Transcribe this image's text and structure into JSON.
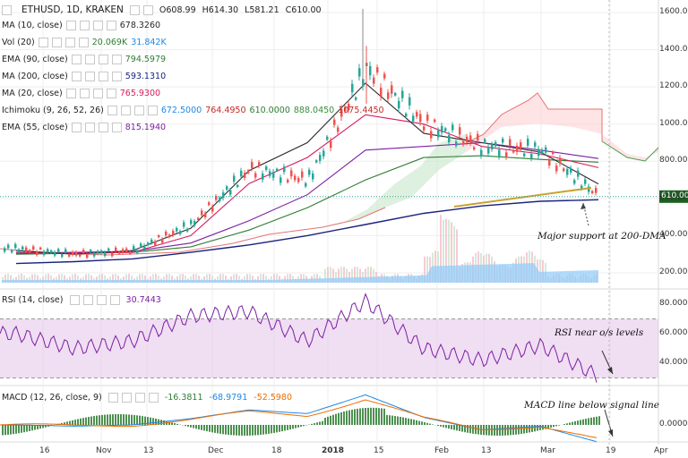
{
  "header": {
    "symbol": "ETHUSD, 1D, KRAKEN",
    "open": "O608.99",
    "high": "H614.30",
    "low": "L581.21",
    "close": "C610.00"
  },
  "legend": [
    {
      "label": "MA (10, close)",
      "values": [
        "678.3260"
      ],
      "color": "#2a2a2a"
    },
    {
      "label": "Vol (20)",
      "values": [
        "20.069K",
        "31.842K"
      ],
      "color": "#2e7d32",
      "color2": "#1e88e5"
    },
    {
      "label": "EMA (90, close)",
      "values": [
        "794.5979"
      ],
      "color": "#2e7d32"
    },
    {
      "label": "MA (200, close)",
      "values": [
        "593.1310"
      ],
      "color": "#1a237e"
    },
    {
      "label": "MA (20, close)",
      "values": [
        "765.9300"
      ],
      "color": "#d81b60"
    },
    {
      "label": "Ichimoku (9, 26, 52, 26)",
      "values": [
        "672.5000",
        "764.4950",
        "610.0000",
        "888.0450",
        "1075.4450"
      ],
      "color": "#1e88e5",
      "colors": [
        "#1e88e5",
        "#c62828",
        "#2e7d32",
        "#388e3c",
        "#c62828"
      ]
    },
    {
      "label": "EMA (55, close)",
      "values": [
        "815.1940"
      ],
      "color": "#7b1fa2"
    }
  ],
  "rsi_legend": {
    "label": "RSI (14, close)",
    "value": "30.7443",
    "color": "#7b1fa2"
  },
  "macd_legend": {
    "label": "MACD (12, 26, close, 9)",
    "values": [
      "-16.3811",
      "-68.9791",
      "-52.5980"
    ],
    "colors": [
      "#2e7d32",
      "#1e88e5",
      "#ef6c00"
    ]
  },
  "annotations": {
    "support": "Major support at 200-DMA",
    "rsi": "RSI near o/s levels",
    "macd": "MACD line below signal line"
  },
  "price_axis": {
    "ticks": [
      "1600.00",
      "1400.00",
      "1200.00",
      "1000.00",
      "800.00",
      "600.00",
      "400.00",
      "200.00"
    ],
    "last_price": "610.00"
  },
  "rsi_axis": {
    "ticks": [
      "80.0000",
      "60.0000",
      "40.0000"
    ]
  },
  "macd_axis": {
    "ticks": [
      "0.0000"
    ]
  },
  "time_axis": {
    "ticks": [
      "16",
      "Nov",
      "13",
      "Dec",
      "18",
      "2018",
      "15",
      "Feb",
      "13",
      "Mar",
      "19",
      "Apr"
    ]
  },
  "colors": {
    "up": "#26a69a",
    "down": "#ef5350",
    "volume": "#90caf9",
    "rsi_band": "#e1bee7",
    "cloud_green": "#c8e6c9",
    "cloud_red": "#ffcdd2",
    "trendline": "#c8a232"
  },
  "chart_data": {
    "type": "line",
    "title": "ETHUSD, 1D, KRAKEN",
    "x": [
      "Oct 16",
      "Nov 1",
      "Nov 13",
      "Dec 1",
      "Dec 18",
      "Jan 1 2018",
      "Jan 15",
      "Feb 1",
      "Feb 13",
      "Mar 1",
      "Mar 19"
    ],
    "series": [
      {
        "name": "Price (close)",
        "values": [
          330,
          300,
          320,
          460,
          760,
          700,
          1300,
          1000,
          880,
          860,
          610
        ]
      },
      {
        "name": "MA (200, close)",
        "values": [
          250,
          260,
          275,
          310,
          350,
          400,
          460,
          520,
          560,
          585,
          593
        ]
      },
      {
        "name": "EMA (90, close)",
        "values": [
          300,
          305,
          310,
          340,
          430,
          550,
          700,
          820,
          830,
          810,
          795
        ]
      },
      {
        "name": "EMA (55, close)",
        "values": [
          305,
          310,
          315,
          360,
          480,
          620,
          860,
          880,
          900,
          860,
          815
        ]
      },
      {
        "name": "MA (20, close)",
        "values": [
          310,
          305,
          310,
          400,
          680,
          820,
          1050,
          1000,
          880,
          840,
          766
        ]
      },
      {
        "name": "MA (10, close)",
        "values": [
          320,
          300,
          320,
          440,
          750,
          900,
          1220,
          950,
          900,
          850,
          678
        ]
      },
      {
        "name": "RSI (14, close)",
        "values": [
          60,
          50,
          55,
          72,
          75,
          55,
          82,
          50,
          42,
          52,
          31
        ]
      },
      {
        "name": "MACD (12, 26, close, 9)",
        "values": [
          0,
          -5,
          0,
          25,
          60,
          45,
          120,
          30,
          -20,
          -5,
          -69
        ]
      }
    ],
    "ylim": [
      150,
      1650
    ],
    "grid": true
  }
}
